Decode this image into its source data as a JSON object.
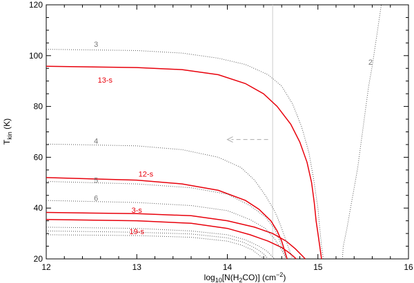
{
  "chart_data": {
    "type": "line",
    "title": "",
    "xlabel": {
      "prefix": "log",
      "sub": "10",
      "mid": "[N(H",
      "sub2": "2",
      "end": "CO)]  (cm",
      "sup": "−2",
      "close": ")"
    },
    "ylabel": {
      "main": "T",
      "sub": "kin",
      "end": " (K)"
    },
    "xlim": [
      12,
      16
    ],
    "ylim": [
      20,
      120
    ],
    "x_ticks": [
      12,
      13,
      14,
      15,
      16
    ],
    "y_ticks": [
      20,
      40,
      60,
      80,
      100,
      120
    ],
    "grid": false,
    "vertical_marker_x": 14.5,
    "arrow": {
      "from": [
        14.45,
        67
      ],
      "to": [
        14.0,
        67
      ]
    },
    "colors": {
      "highlight": "#e8000b",
      "dotted": "#555555",
      "label_gray": "#777777",
      "marker": "#cccccc"
    },
    "series": [
      {
        "name": "13-s",
        "style": "solid",
        "label_at": [
          12.65,
          90.5
        ],
        "x": [
          12.0,
          13.0,
          13.5,
          13.9,
          14.2,
          14.4,
          14.55,
          14.7,
          14.8,
          14.88,
          14.93,
          14.96,
          14.98,
          15.0,
          15.02,
          15.04
        ],
        "y": [
          95.8,
          95.3,
          94.5,
          92.5,
          89.0,
          85.0,
          80.0,
          73.0,
          66.0,
          58.0,
          50.0,
          42.0,
          35.0,
          30.0,
          25.0,
          20.0
        ]
      },
      {
        "name": "12-s",
        "style": "solid",
        "label_at": [
          13.1,
          53.5
        ],
        "x": [
          12.0,
          13.0,
          13.5,
          13.9,
          14.2,
          14.35,
          14.48,
          14.55,
          14.6,
          14.63,
          14.66
        ],
        "y": [
          52.0,
          51.0,
          49.5,
          47.0,
          43.0,
          39.5,
          35.0,
          31.0,
          27.0,
          23.5,
          20.0
        ]
      },
      {
        "name": "3-s",
        "style": "solid",
        "label_at": [
          13.0,
          39.2
        ],
        "x": [
          12.0,
          13.0,
          13.6,
          14.0,
          14.3,
          14.5,
          14.65,
          14.75,
          14.82,
          14.86
        ],
        "y": [
          38.3,
          37.8,
          37.0,
          35.0,
          32.5,
          30.0,
          27.0,
          24.0,
          21.5,
          20.0
        ]
      },
      {
        "name": "19-s",
        "style": "solid",
        "label_at": [
          13.0,
          30.8
        ],
        "x": [
          12.0,
          13.0,
          13.6,
          14.0,
          14.25,
          14.45,
          14.6,
          14.68,
          14.73,
          14.76
        ],
        "y": [
          35.5,
          35.0,
          34.0,
          32.0,
          29.5,
          27.0,
          24.5,
          22.5,
          21.0,
          20.0
        ]
      },
      {
        "name": "3",
        "style": "dotted",
        "label_at": [
          12.55,
          104.5
        ],
        "x": [
          12.0,
          13.0,
          13.5,
          13.9,
          14.2,
          14.45,
          14.6,
          14.72,
          14.82,
          14.9,
          14.95,
          15.0,
          15.02,
          15.04,
          15.06
        ],
        "y": [
          102.5,
          102.0,
          101.0,
          99.0,
          96.5,
          92.5,
          88.0,
          81.0,
          72.0,
          62.0,
          52.0,
          40.0,
          32.0,
          25.0,
          20.0
        ]
      },
      {
        "name": "4",
        "style": "dotted",
        "label_at": [
          12.55,
          66.5
        ],
        "x": [
          12.0,
          13.0,
          13.5,
          13.9,
          14.15,
          14.3,
          14.42,
          14.52,
          14.58,
          14.63,
          14.66,
          14.68,
          14.7,
          14.72
        ],
        "y": [
          65.2,
          64.5,
          63.0,
          60.0,
          56.0,
          51.0,
          45.0,
          39.0,
          34.0,
          29.0,
          26.0,
          24.0,
          22.0,
          20.0
        ]
      },
      {
        "name": "5",
        "style": "dotted",
        "label_at": [
          12.55,
          51.0
        ],
        "x": [
          12.0,
          13.0,
          13.6,
          14.0,
          14.25,
          14.42,
          14.52,
          14.58,
          14.62,
          14.65
        ],
        "y": [
          50.5,
          49.5,
          48.0,
          45.5,
          41.0,
          36.5,
          32.0,
          27.0,
          23.0,
          20.0
        ]
      },
      {
        "name": "6",
        "style": "dotted",
        "label_at": [
          12.55,
          44.0
        ],
        "x": [
          12.0,
          13.0,
          13.6,
          14.0,
          14.25,
          14.42,
          14.52,
          14.6,
          14.65
        ],
        "y": [
          43.0,
          42.2,
          41.0,
          39.0,
          35.5,
          32.0,
          28.0,
          23.5,
          20.0
        ]
      },
      {
        "name": "",
        "style": "dotted",
        "label_at": null,
        "x": [
          12.0,
          13.0,
          13.6,
          14.0,
          14.2,
          14.35,
          14.44,
          14.49,
          14.52
        ],
        "y": [
          32.5,
          32.0,
          31.0,
          29.5,
          27.5,
          25.0,
          23.0,
          21.2,
          20.0
        ]
      },
      {
        "name": "",
        "style": "dotted",
        "label_at": null,
        "x": [
          12.0,
          13.0,
          13.6,
          14.0,
          14.18,
          14.32,
          14.4,
          14.45
        ],
        "y": [
          31.0,
          30.5,
          29.8,
          28.3,
          26.5,
          24.0,
          22.0,
          20.0
        ]
      },
      {
        "name": "",
        "style": "dotted",
        "label_at": null,
        "x": [
          12.0,
          13.0,
          13.6,
          14.0,
          14.15,
          14.28,
          14.35,
          14.4
        ],
        "y": [
          29.5,
          29.2,
          28.5,
          27.0,
          25.5,
          23.5,
          21.5,
          20.0
        ]
      },
      {
        "name": "2",
        "style": "dotted",
        "label_at": [
          15.58,
          97.5
        ],
        "x": [
          15.27,
          15.28,
          15.32,
          15.36,
          15.4,
          15.44,
          15.47,
          15.5,
          15.53,
          15.56,
          15.6,
          15.65,
          15.7
        ],
        "y": [
          20.0,
          25.0,
          32.0,
          40.0,
          48.0,
          56.0,
          64.0,
          72.0,
          80.0,
          88.0,
          96.0,
          108.0,
          120.0
        ]
      }
    ]
  }
}
